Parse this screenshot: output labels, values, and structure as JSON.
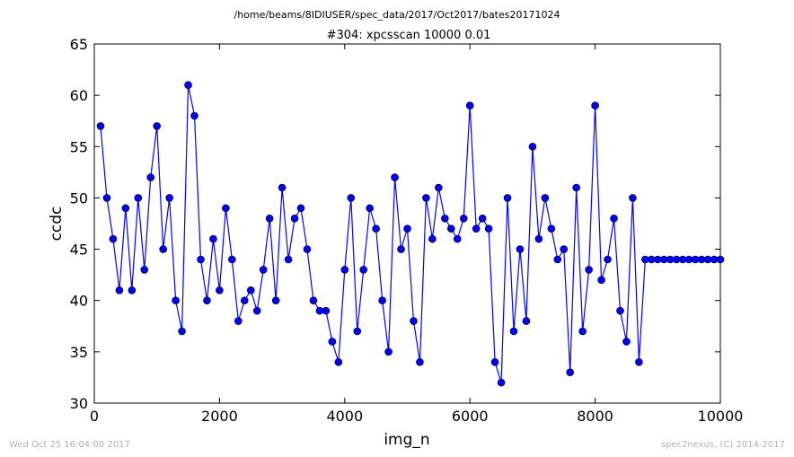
{
  "figure": {
    "path_title": "/home/beams/8IDIUSER/spec_data/2017/Oct2017/bates20171024",
    "footer_left": "Wed Oct 25 16:04:00 2017",
    "footer_right": "spec2nexus, (C) 2014-2017"
  },
  "chart_data": {
    "type": "line",
    "title": "#304: xpcsscan 10000 0.01",
    "xlabel": "img_n",
    "ylabel": "ccdc",
    "xlim": [
      0,
      10000
    ],
    "ylim": [
      30,
      65
    ],
    "xticks": [
      0,
      2000,
      4000,
      6000,
      8000,
      10000
    ],
    "yticks": [
      30,
      35,
      40,
      45,
      50,
      55,
      60,
      65
    ],
    "grid": false,
    "line_color": "#0000ff",
    "marker": "circle",
    "series": [
      {
        "x": [
          100,
          200,
          300,
          400,
          500,
          600,
          700,
          800,
          900,
          1000,
          1100,
          1200,
          1300,
          1400,
          1500,
          1600,
          1700,
          1800,
          1900,
          2000,
          2100,
          2200,
          2300,
          2400,
          2500,
          2600,
          2700,
          2800,
          2900,
          3000,
          3100,
          3200,
          3300,
          3400,
          3500,
          3600,
          3700,
          3800,
          3900,
          4000,
          4100,
          4200,
          4300,
          4400,
          4500,
          4600,
          4700,
          4800,
          4900,
          5000,
          5100,
          5200,
          5300,
          5400,
          5500,
          5600,
          5700,
          5800,
          5900,
          6000,
          6100,
          6200,
          6300,
          6400,
          6500,
          6600,
          6700,
          6800,
          6900,
          7000,
          7100,
          7200,
          7300,
          7400,
          7500,
          7600,
          7700,
          7800,
          7900,
          8000,
          8100,
          8200,
          8300,
          8400,
          8500,
          8600,
          8700,
          8800,
          8900,
          9000,
          9100,
          9200,
          9300,
          9400,
          9500,
          9600,
          9700,
          9800,
          9900,
          10000
        ],
        "y": [
          57,
          50,
          46,
          41,
          49,
          41,
          50,
          43,
          52,
          57,
          45,
          50,
          40,
          37,
          61,
          58,
          44,
          40,
          46,
          41,
          49,
          44,
          38,
          40,
          41,
          39,
          43,
          48,
          40,
          51,
          44,
          48,
          49,
          45,
          40,
          39,
          39,
          36,
          34,
          43,
          50,
          37,
          43,
          49,
          47,
          40,
          35,
          52,
          45,
          47,
          38,
          34,
          50,
          46,
          51,
          48,
          47,
          46,
          48,
          59,
          47,
          48,
          47,
          34,
          32,
          50,
          37,
          45,
          38,
          55,
          46,
          50,
          47,
          44,
          45,
          33,
          51,
          37,
          43,
          59,
          42,
          44,
          48,
          39,
          36,
          50,
          34,
          44,
          44,
          44,
          44,
          44,
          44,
          44,
          44,
          44,
          44,
          44,
          44,
          44
        ]
      }
    ]
  }
}
